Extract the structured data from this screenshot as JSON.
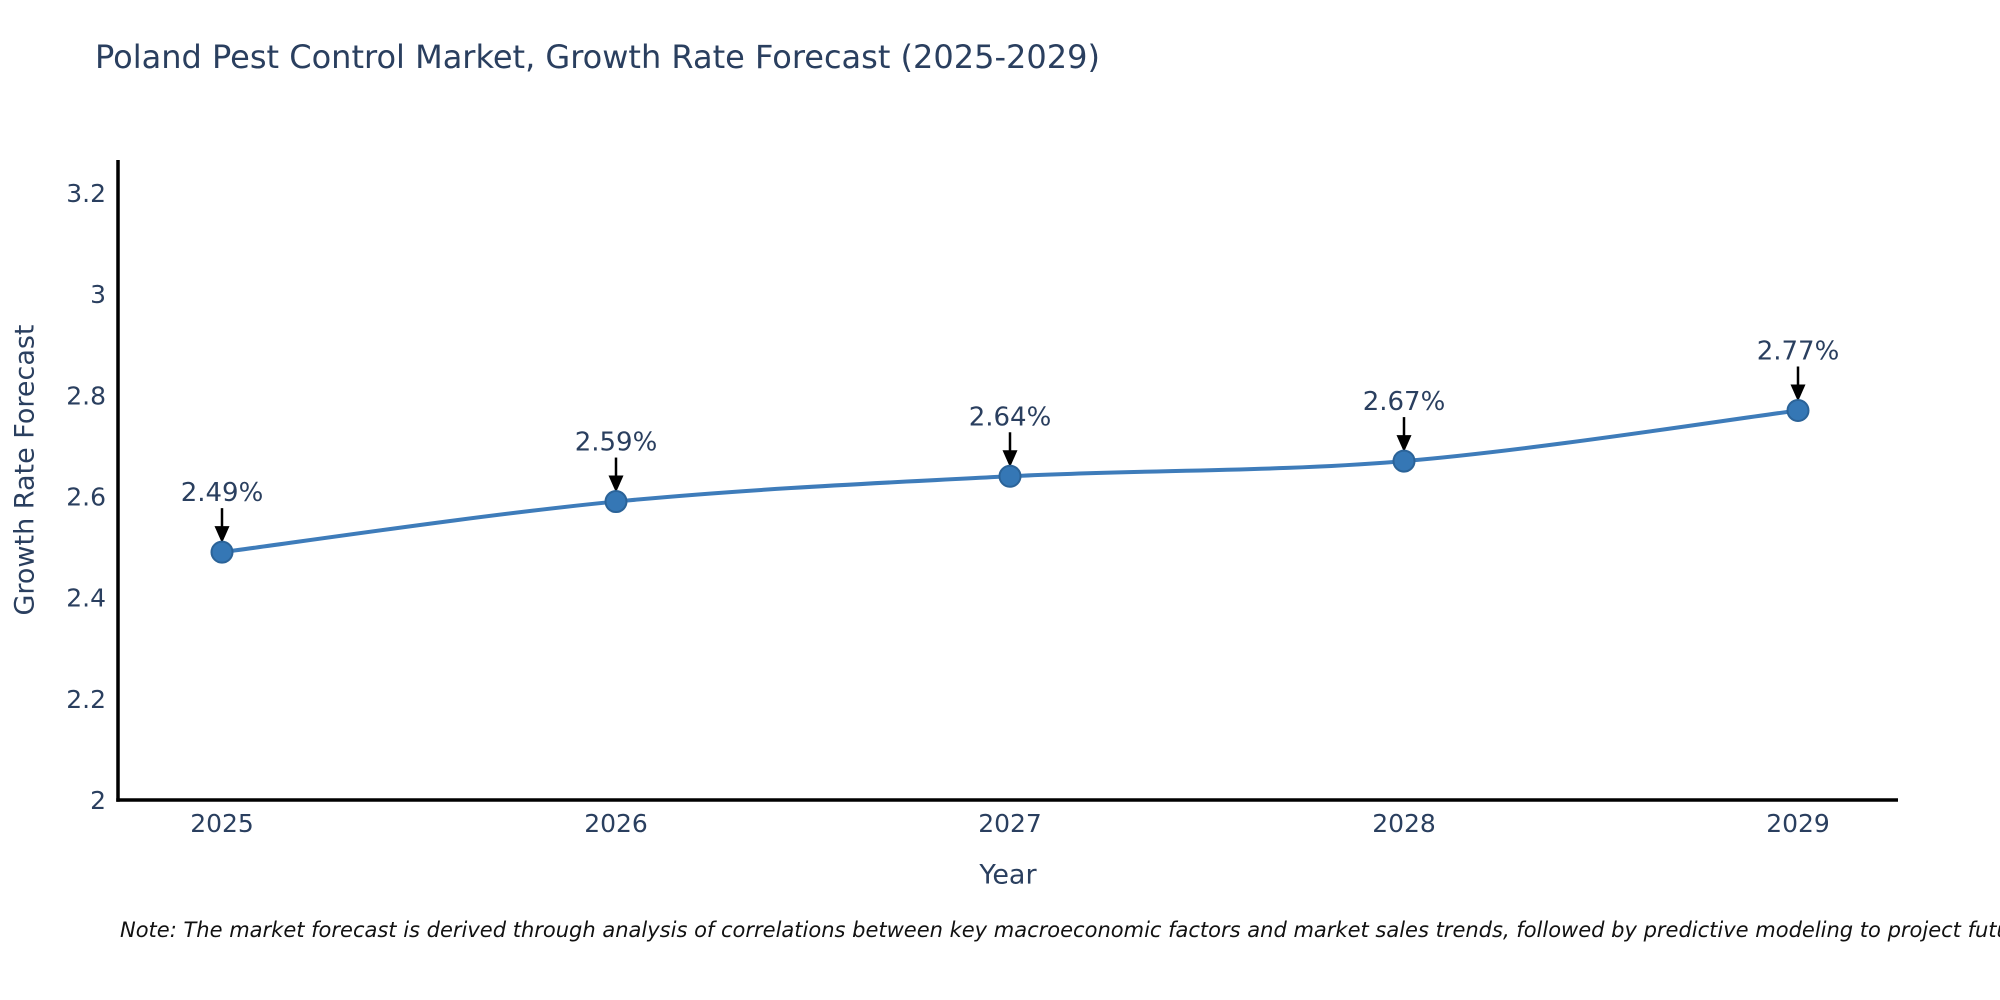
{
  "chart_data": {
    "type": "line",
    "title": "Poland Pest Control Market, Growth Rate Forecast (2025-2029)",
    "xlabel": "Year",
    "ylabel": "Growth Rate Forecast",
    "categories": [
      "2025",
      "2026",
      "2027",
      "2028",
      "2029"
    ],
    "series": [
      {
        "name": "Growth Rate Forecast",
        "values": [
          2.49,
          2.59,
          2.64,
          2.67,
          2.77
        ],
        "point_labels": [
          "2.49%",
          "2.59%",
          "2.64%",
          "2.67%",
          "2.77%"
        ]
      }
    ],
    "ylim": [
      2.0,
      3.2
    ],
    "yticks": [
      2.0,
      2.2,
      2.4,
      2.6,
      2.8,
      3.0,
      3.2
    ],
    "ytick_labels": [
      "2",
      "2.2",
      "2.4",
      "2.6",
      "2.8",
      "3",
      "3.2"
    ],
    "grid": false,
    "legend_position": "none",
    "annotations": "black arrows point from each percentage label down to its data point",
    "colors": {
      "line": "#3e7cba",
      "marker_fill": "#3577b5",
      "marker_edge": "#2b6398",
      "axis": "#000000",
      "chart_text": "#2a3f5f",
      "annotation_arrow": "#000000",
      "background": "#ffffff"
    }
  },
  "note": {
    "text": "Note: The market forecast is derived through analysis of correlations between key macroeconomic factors and market sales trends, followed by predictive modeling to project future sales"
  }
}
